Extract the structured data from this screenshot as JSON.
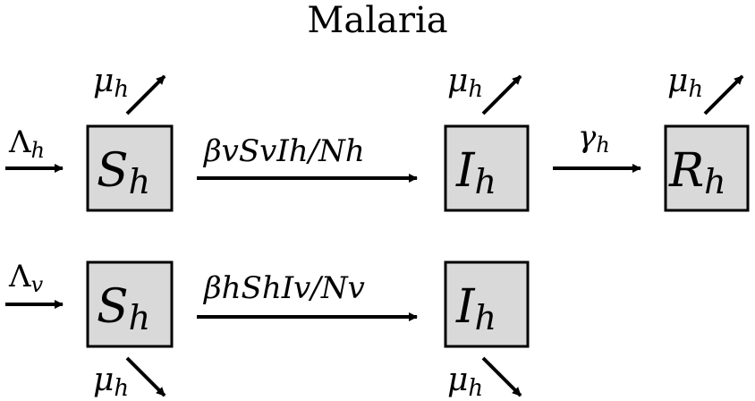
{
  "title": "Malaria",
  "colors": {
    "box_fill": "#d9d9d9",
    "stroke": "#000000",
    "background": "#ffffff"
  },
  "human": {
    "inflow": {
      "base": "Λ",
      "sub": "h"
    },
    "compartments": [
      {
        "id": "Sh",
        "base": "S",
        "sub": "h"
      },
      {
        "id": "Ih",
        "base": "I",
        "sub": "h"
      },
      {
        "id": "Rh",
        "base": "R",
        "sub": "h"
      }
    ],
    "transitions": [
      {
        "from": "Sh",
        "to": "Ih",
        "label": "βvSvIh/Nh"
      },
      {
        "from": "Ih",
        "to": "Rh",
        "base": "γ",
        "sub": "h"
      }
    ],
    "death": {
      "base": "μ",
      "sub": "h"
    }
  },
  "vector": {
    "inflow": {
      "base": "Λ",
      "sub": "v"
    },
    "compartments": [
      {
        "id": "Sv",
        "base": "S",
        "sub": "h"
      },
      {
        "id": "Iv",
        "base": "I",
        "sub": "h"
      }
    ],
    "transitions": [
      {
        "from": "Sv",
        "to": "Iv",
        "label": "βhShIv/Nv"
      }
    ],
    "death": {
      "base": "μ",
      "sub": "h"
    }
  }
}
